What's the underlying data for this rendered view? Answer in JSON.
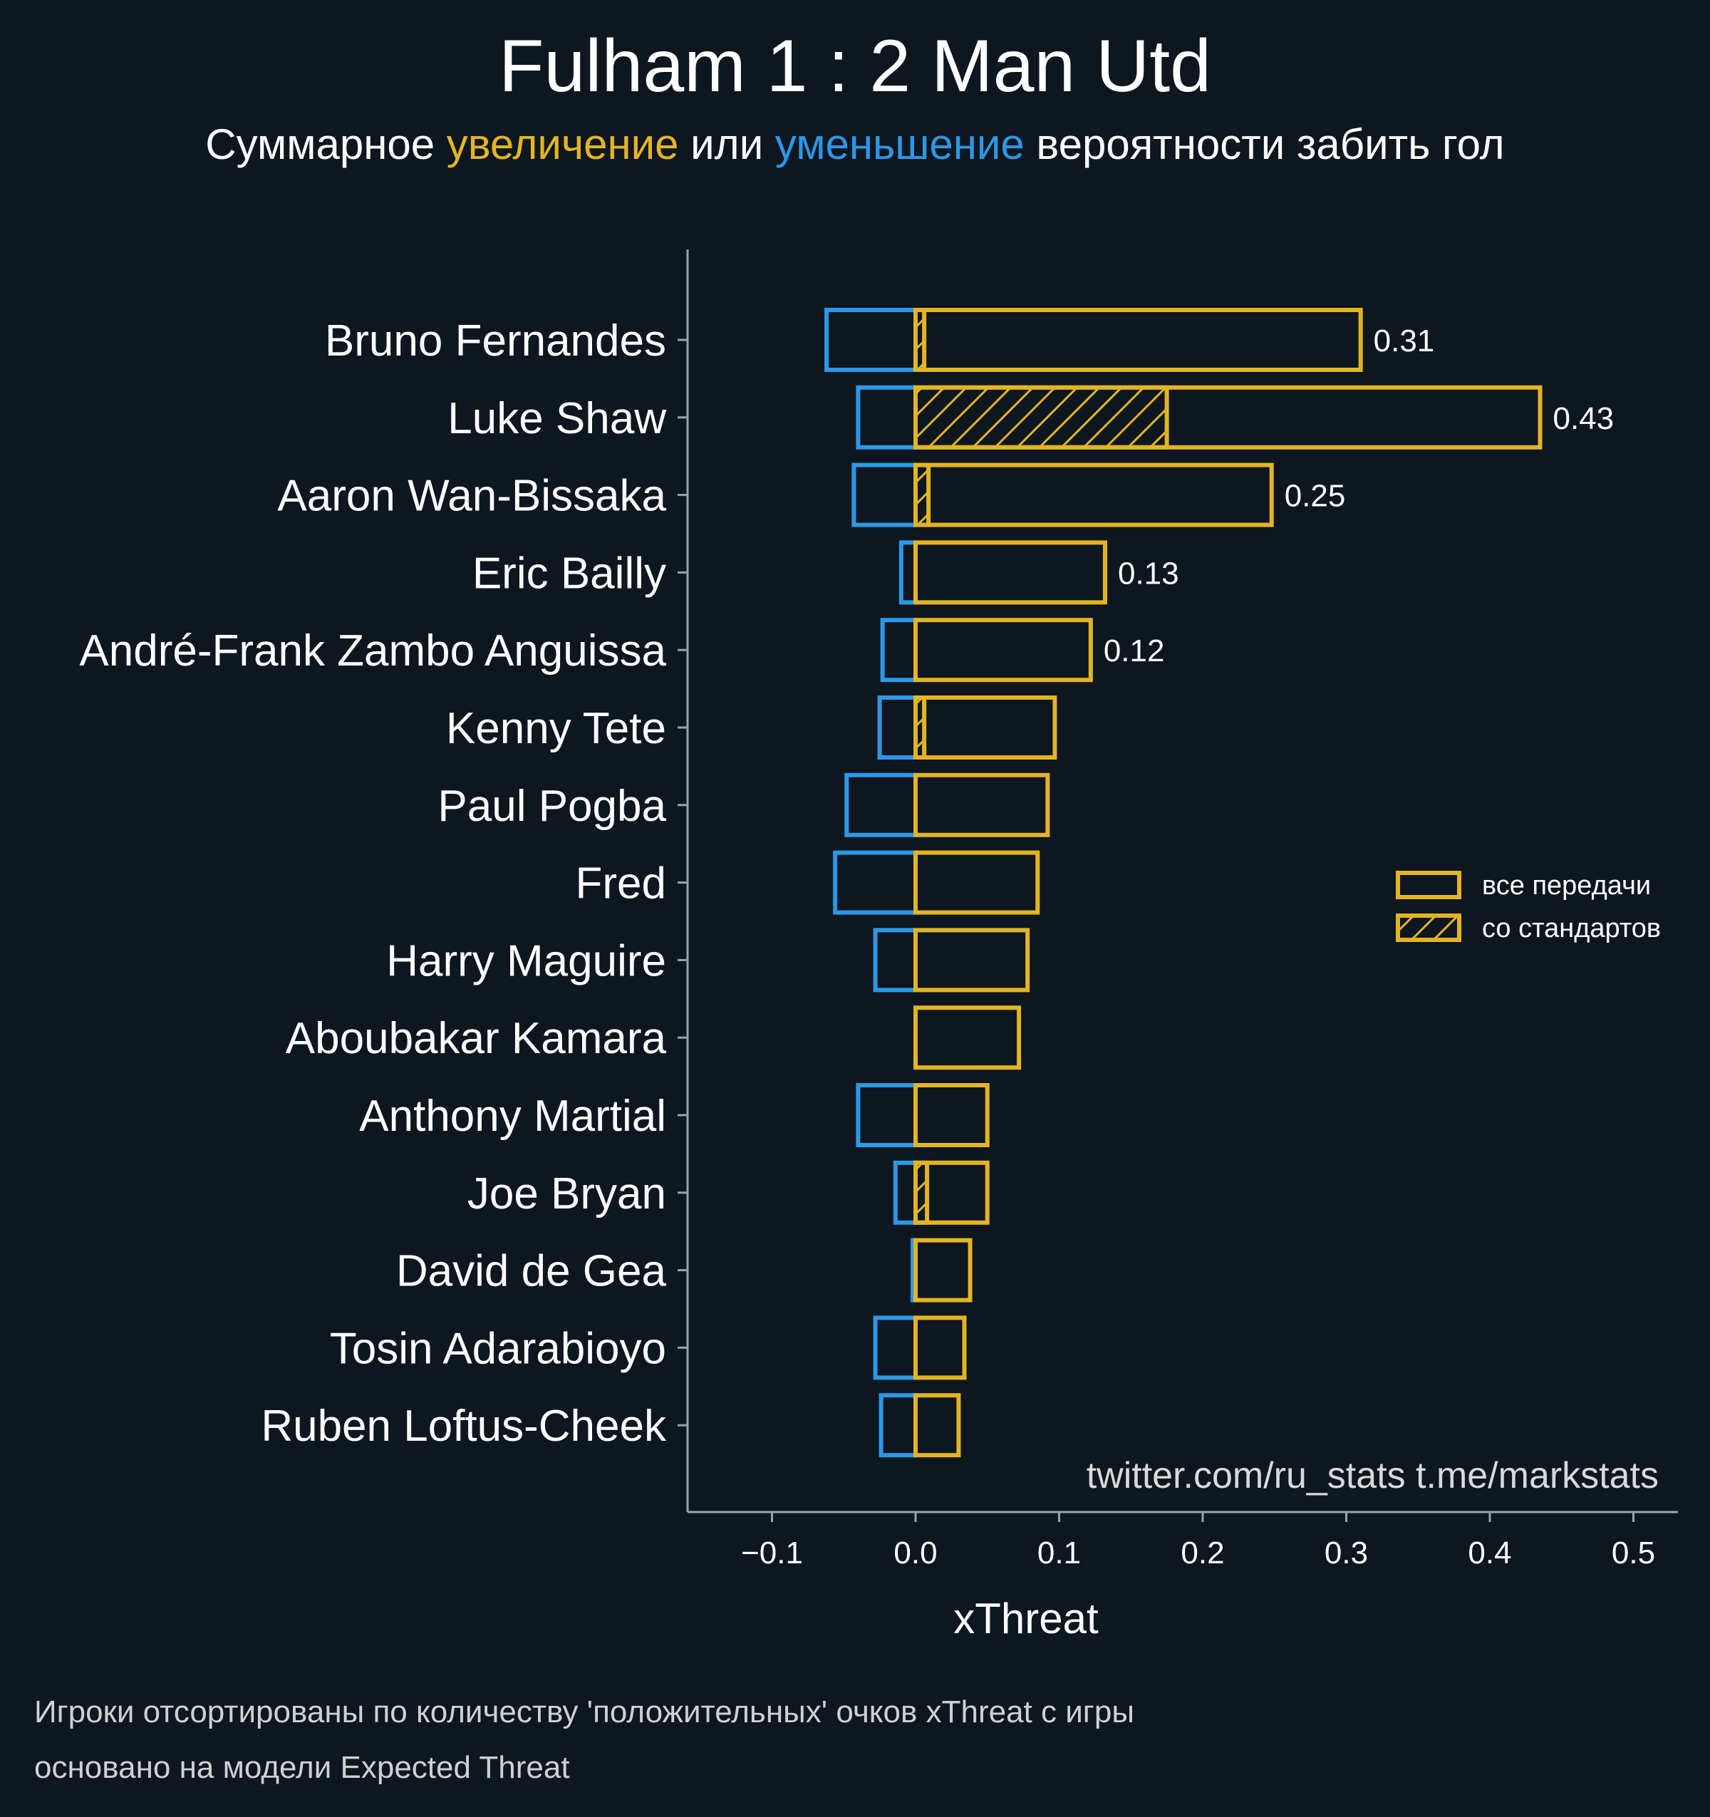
{
  "title": "Fulham 1 : 2 Man Utd",
  "subtitle": {
    "prefix": "Суммарное ",
    "increase": "увеличение",
    "middle": " или ",
    "decrease": "уменьшение",
    "suffix": " вероятности забить гол"
  },
  "credit": "twitter.com/ru_stats  t.me/markstats",
  "footnotes": [
    "Игроки отсортированы по количеству 'положительных' очков xThreat с игры",
    "основано на модели Expected Threat"
  ],
  "colors": {
    "background": "#0e1720",
    "increase": "#e3b522",
    "decrease": "#2b98e8",
    "axis": "#9aa4a8"
  },
  "chart_data": {
    "type": "bar",
    "orientation": "horizontal",
    "xlabel": "xThreat",
    "xlim": [
      -0.16,
      0.53
    ],
    "xticks": [
      -0.1,
      0.0,
      0.1,
      0.2,
      0.3,
      0.4,
      0.5
    ],
    "xtick_labels": [
      "−0.1",
      "0.0",
      "0.1",
      "0.2",
      "0.3",
      "0.4",
      "0.5"
    ],
    "categories": [
      "Bruno Fernandes",
      "Luke Shaw",
      "Aaron Wan-Bissaka",
      "Eric Bailly",
      "André-Frank Zambo Anguissa",
      "Kenny Tete",
      "Paul Pogba",
      "Fred",
      "Harry Maguire",
      "Aboubakar Kamara",
      "Anthony Martial",
      "Joe Bryan",
      "David de Gea",
      "Tosin Adarabioyo",
      "Ruben Loftus-Cheek"
    ],
    "series": [
      {
        "name": "все передачи",
        "values_positive": [
          0.31,
          0.435,
          0.248,
          0.132,
          0.122,
          0.097,
          0.092,
          0.085,
          0.078,
          0.072,
          0.05,
          0.05,
          0.038,
          0.034,
          0.03
        ],
        "values_negative": [
          -0.062,
          -0.04,
          -0.043,
          -0.01,
          -0.023,
          -0.025,
          -0.048,
          -0.056,
          -0.028,
          0.0,
          -0.04,
          -0.014,
          -0.002,
          -0.028,
          -0.024
        ]
      },
      {
        "name": "со стандартов",
        "values_positive": [
          0.006,
          0.175,
          0.009,
          0.0,
          0.0,
          0.006,
          0.0,
          0.0,
          0.0,
          0.0,
          0.0,
          0.008,
          0.0,
          0.0,
          0.0
        ]
      }
    ],
    "value_labels": [
      "0.31",
      "0.43",
      "0.25",
      "0.13",
      "0.12",
      "",
      "",
      "",
      "",
      "",
      "",
      "",
      "",
      "",
      ""
    ],
    "legend": {
      "position": "right"
    },
    "grid": false
  }
}
